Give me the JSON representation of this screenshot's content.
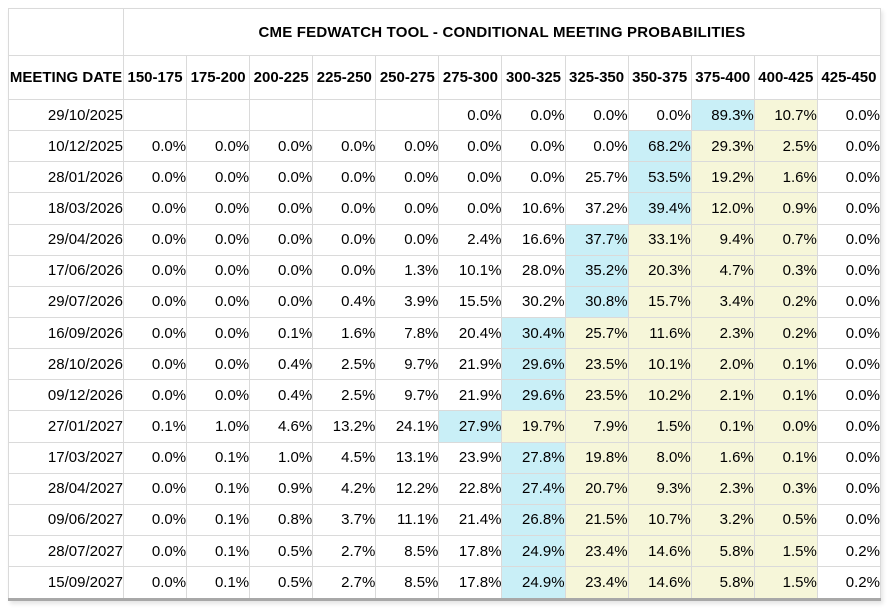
{
  "table": {
    "title": "CME FEDWATCH TOOL - CONDITIONAL MEETING PROBABILITIES",
    "date_column_header": "MEETING DATE",
    "rate_columns": [
      "150-175",
      "175-200",
      "200-225",
      "225-250",
      "250-275",
      "275-300",
      "300-325",
      "325-350",
      "350-375",
      "375-400",
      "400-425",
      "425-450"
    ],
    "rows": [
      {
        "date": "29/10/2025",
        "values": [
          "",
          "",
          "",
          "",
          "",
          "0.0%",
          "0.0%",
          "0.0%",
          "0.0%",
          "89.3%",
          "10.7%",
          "0.0%"
        ],
        "blue": 9,
        "yellow": [
          10
        ]
      },
      {
        "date": "10/12/2025",
        "values": [
          "0.0%",
          "0.0%",
          "0.0%",
          "0.0%",
          "0.0%",
          "0.0%",
          "0.0%",
          "0.0%",
          "68.2%",
          "29.3%",
          "2.5%",
          "0.0%"
        ],
        "blue": 8,
        "yellow": [
          9,
          10
        ]
      },
      {
        "date": "28/01/2026",
        "values": [
          "0.0%",
          "0.0%",
          "0.0%",
          "0.0%",
          "0.0%",
          "0.0%",
          "0.0%",
          "25.7%",
          "53.5%",
          "19.2%",
          "1.6%",
          "0.0%"
        ],
        "blue": 8,
        "yellow": [
          9,
          10
        ]
      },
      {
        "date": "18/03/2026",
        "values": [
          "0.0%",
          "0.0%",
          "0.0%",
          "0.0%",
          "0.0%",
          "0.0%",
          "10.6%",
          "37.2%",
          "39.4%",
          "12.0%",
          "0.9%",
          "0.0%"
        ],
        "blue": 8,
        "yellow": [
          9,
          10
        ]
      },
      {
        "date": "29/04/2026",
        "values": [
          "0.0%",
          "0.0%",
          "0.0%",
          "0.0%",
          "0.0%",
          "2.4%",
          "16.6%",
          "37.7%",
          "33.1%",
          "9.4%",
          "0.7%",
          "0.0%"
        ],
        "blue": 7,
        "yellow": [
          8,
          9,
          10
        ]
      },
      {
        "date": "17/06/2026",
        "values": [
          "0.0%",
          "0.0%",
          "0.0%",
          "0.0%",
          "1.3%",
          "10.1%",
          "28.0%",
          "35.2%",
          "20.3%",
          "4.7%",
          "0.3%",
          "0.0%"
        ],
        "blue": 7,
        "yellow": [
          8,
          9,
          10
        ]
      },
      {
        "date": "29/07/2026",
        "values": [
          "0.0%",
          "0.0%",
          "0.0%",
          "0.4%",
          "3.9%",
          "15.5%",
          "30.2%",
          "30.8%",
          "15.7%",
          "3.4%",
          "0.2%",
          "0.0%"
        ],
        "blue": 7,
        "yellow": [
          8,
          9,
          10
        ]
      },
      {
        "date": "16/09/2026",
        "values": [
          "0.0%",
          "0.0%",
          "0.1%",
          "1.6%",
          "7.8%",
          "20.4%",
          "30.4%",
          "25.7%",
          "11.6%",
          "2.3%",
          "0.2%",
          "0.0%"
        ],
        "blue": 6,
        "yellow": [
          7,
          8,
          9,
          10
        ]
      },
      {
        "date": "28/10/2026",
        "values": [
          "0.0%",
          "0.0%",
          "0.4%",
          "2.5%",
          "9.7%",
          "21.9%",
          "29.6%",
          "23.5%",
          "10.1%",
          "2.0%",
          "0.1%",
          "0.0%"
        ],
        "blue": 6,
        "yellow": [
          7,
          8,
          9,
          10
        ]
      },
      {
        "date": "09/12/2026",
        "values": [
          "0.0%",
          "0.0%",
          "0.4%",
          "2.5%",
          "9.7%",
          "21.9%",
          "29.6%",
          "23.5%",
          "10.2%",
          "2.1%",
          "0.1%",
          "0.0%"
        ],
        "blue": 6,
        "yellow": [
          7,
          8,
          9,
          10
        ]
      },
      {
        "date": "27/01/2027",
        "values": [
          "0.1%",
          "1.0%",
          "4.6%",
          "13.2%",
          "24.1%",
          "27.9%",
          "19.7%",
          "7.9%",
          "1.5%",
          "0.1%",
          "0.0%",
          "0.0%"
        ],
        "blue": 5,
        "yellow": [
          6,
          7,
          8,
          9,
          10
        ]
      },
      {
        "date": "17/03/2027",
        "values": [
          "0.0%",
          "0.1%",
          "1.0%",
          "4.5%",
          "13.1%",
          "23.9%",
          "27.8%",
          "19.8%",
          "8.0%",
          "1.6%",
          "0.1%",
          "0.0%"
        ],
        "blue": 6,
        "yellow": [
          7,
          8,
          9,
          10
        ]
      },
      {
        "date": "28/04/2027",
        "values": [
          "0.0%",
          "0.1%",
          "0.9%",
          "4.2%",
          "12.2%",
          "22.8%",
          "27.4%",
          "20.7%",
          "9.3%",
          "2.3%",
          "0.3%",
          "0.0%"
        ],
        "blue": 6,
        "yellow": [
          7,
          8,
          9,
          10
        ]
      },
      {
        "date": "09/06/2027",
        "values": [
          "0.0%",
          "0.1%",
          "0.8%",
          "3.7%",
          "11.1%",
          "21.4%",
          "26.8%",
          "21.5%",
          "10.7%",
          "3.2%",
          "0.5%",
          "0.0%"
        ],
        "blue": 6,
        "yellow": [
          7,
          8,
          9,
          10
        ]
      },
      {
        "date": "28/07/2027",
        "values": [
          "0.0%",
          "0.1%",
          "0.5%",
          "2.7%",
          "8.5%",
          "17.8%",
          "24.9%",
          "23.4%",
          "14.6%",
          "5.8%",
          "1.5%",
          "0.2%"
        ],
        "blue": 6,
        "yellow": [
          7,
          8,
          9,
          10
        ]
      },
      {
        "date": "15/09/2027",
        "values": [
          "0.0%",
          "0.1%",
          "0.5%",
          "2.7%",
          "8.5%",
          "17.8%",
          "24.9%",
          "23.4%",
          "14.6%",
          "5.8%",
          "1.5%",
          "0.2%"
        ],
        "blue": 6,
        "yellow": [
          7,
          8,
          9,
          10
        ]
      }
    ]
  },
  "colors": {
    "highlight_blue": "#c9eff7",
    "highlight_yellow": "#f6f6d9",
    "grid_line": "#dadada",
    "outer_border": "#c4c4c4",
    "bottom_border": "#a8a8a8",
    "text": "#000000"
  }
}
